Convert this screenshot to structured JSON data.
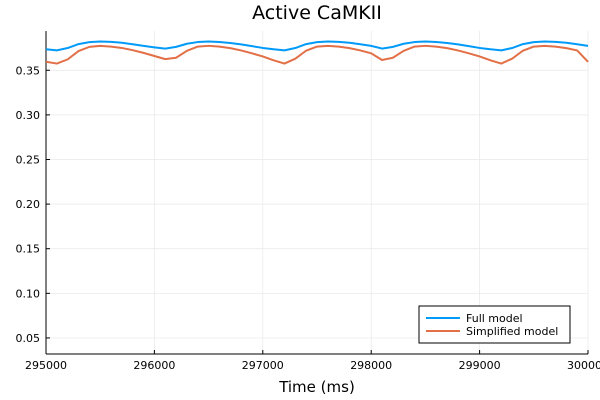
{
  "chart_data": {
    "type": "line",
    "title": "Active CaMKII",
    "xlabel": "Time (ms)",
    "ylabel": "",
    "xlim": [
      295000,
      300000
    ],
    "ylim": [
      0.032,
      0.394
    ],
    "xticks": [
      295000,
      296000,
      297000,
      298000,
      299000,
      300000
    ],
    "xtick_labels": [
      "295000",
      "296000",
      "297000",
      "298000",
      "299000",
      "300000"
    ],
    "yticks": [
      0.05,
      0.1,
      0.15,
      0.2,
      0.25,
      0.3,
      0.35
    ],
    "ytick_labels": [
      "0.05",
      "0.10",
      "0.15",
      "0.20",
      "0.25",
      "0.30",
      "0.35"
    ],
    "grid": true,
    "legend_position": "bottom-right",
    "x": [
      295000,
      295100,
      295200,
      295300,
      295400,
      295500,
      295600,
      295700,
      295800,
      295900,
      296000,
      296100,
      296200,
      296300,
      296400,
      296500,
      296600,
      296700,
      296800,
      296900,
      297000,
      297100,
      297200,
      297300,
      297400,
      297500,
      297600,
      297700,
      297800,
      297900,
      298000,
      298100,
      298200,
      298300,
      298400,
      298500,
      298600,
      298700,
      298800,
      298900,
      299000,
      299100,
      299200,
      299300,
      299400,
      299500,
      299600,
      299700,
      299800,
      299900,
      300000
    ],
    "series": [
      {
        "name": "Full model",
        "color": "#009af9",
        "values": [
          0.3735,
          0.3723,
          0.3749,
          0.3793,
          0.3815,
          0.3822,
          0.3818,
          0.3808,
          0.3792,
          0.3773,
          0.3757,
          0.3743,
          0.3762,
          0.3797,
          0.3816,
          0.3822,
          0.3817,
          0.3806,
          0.379,
          0.377,
          0.375,
          0.3735,
          0.3723,
          0.3749,
          0.3793,
          0.3815,
          0.3822,
          0.3818,
          0.3808,
          0.3792,
          0.3773,
          0.3743,
          0.3762,
          0.3797,
          0.3816,
          0.3822,
          0.3817,
          0.3806,
          0.379,
          0.377,
          0.375,
          0.3735,
          0.3723,
          0.3749,
          0.3793,
          0.3815,
          0.3822,
          0.3818,
          0.3808,
          0.3792,
          0.3773
        ]
      },
      {
        "name": "Simplified model",
        "color": "#e26f46",
        "values": [
          0.3595,
          0.3575,
          0.3622,
          0.3715,
          0.3762,
          0.3773,
          0.3765,
          0.375,
          0.3725,
          0.3695,
          0.366,
          0.3625,
          0.364,
          0.3718,
          0.3765,
          0.3774,
          0.3765,
          0.3748,
          0.3722,
          0.369,
          0.3655,
          0.3612,
          0.3575,
          0.363,
          0.372,
          0.3765,
          0.3773,
          0.3765,
          0.3748,
          0.3722,
          0.369,
          0.3615,
          0.364,
          0.3718,
          0.3765,
          0.3774,
          0.3765,
          0.3748,
          0.3722,
          0.369,
          0.3655,
          0.3612,
          0.3575,
          0.363,
          0.372,
          0.3765,
          0.3773,
          0.3765,
          0.3748,
          0.3722,
          0.3595
        ]
      }
    ]
  }
}
